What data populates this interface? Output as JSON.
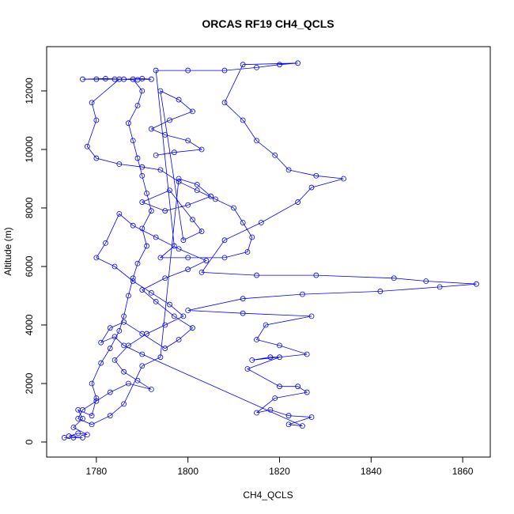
{
  "chart_data": {
    "type": "line",
    "markers": true,
    "title": "ORCAS RF19 CH4_QCLS",
    "x_label": "CH4_QCLS",
    "y_label": "Altitude (m)",
    "color": "#0000ff",
    "xlim": [
      1769.14,
      1866.03
    ],
    "ylim": [
      -514,
      13513
    ],
    "xticks": [
      1780,
      1800,
      1820,
      1840,
      1860
    ],
    "yticks": [
      0,
      2000,
      4000,
      6000,
      8000,
      10000,
      12000
    ],
    "x": [
      1773,
      1775,
      1777,
      1774,
      1776,
      1778,
      1775,
      1777,
      1776,
      1779,
      1780,
      1779,
      1781,
      1783,
      1785,
      1786,
      1787,
      1788,
      1789,
      1791,
      1790,
      1792,
      1791,
      1790,
      1789,
      1788,
      1787,
      1789,
      1790,
      1788,
      1784,
      1780,
      1777,
      1782,
      1786,
      1790,
      1792,
      1789,
      1785,
      1779,
      1780,
      1778,
      1780,
      1785,
      1790,
      1794,
      1798,
      1802,
      1806,
      1810,
      1812,
      1814,
      1813,
      1808,
      1800,
      1794,
      1797,
      1793,
      1800,
      1808,
      1815,
      1820,
      1824,
      1812,
      1808,
      1812,
      1815,
      1819,
      1822,
      1828,
      1834,
      1827,
      1824,
      1816,
      1808,
      1803,
      1815,
      1828,
      1845,
      1852,
      1863,
      1855,
      1842,
      1825,
      1812,
      1800,
      1812,
      1827,
      1817,
      1815,
      1820,
      1826,
      1814,
      1818,
      1820,
      1813,
      1820,
      1824,
      1826,
      1819,
      1815,
      1818,
      1822,
      1827,
      1822,
      1825,
      1790,
      1786,
      1784,
      1781,
      1783,
      1786,
      1790,
      1795,
      1798,
      1801,
      1797,
      1793,
      1790,
      1795,
      1800,
      1804,
      1798,
      1793,
      1788,
      1785,
      1782,
      1780,
      1784,
      1788,
      1792,
      1796,
      1799,
      1795,
      1791,
      1787,
      1784,
      1786,
      1789,
      1792,
      1787,
      1783,
      1780,
      1777,
      1776,
      1779,
      1783,
      1786,
      1790,
      1794,
      1798,
      1802,
      1805,
      1800,
      1795,
      1790,
      1796,
      1801,
      1803,
      1799,
      1794,
      1798,
      1801,
      1796,
      1792,
      1795,
      1800,
      1803,
      1797,
      1793
    ],
    "values": [
      150,
      150,
      150,
      200,
      300,
      250,
      500,
      800,
      1100,
      900,
      1500,
      2000,
      2700,
      3200,
      3800,
      4300,
      5000,
      5600,
      6100,
      6700,
      7300,
      7900,
      8500,
      9100,
      9700,
      10300,
      10900,
      11500,
      12000,
      12400,
      12400,
      12400,
      12400,
      12420,
      12400,
      12420,
      12400,
      12380,
      12400,
      11600,
      11000,
      10100,
      9700,
      9500,
      9400,
      9300,
      8900,
      8600,
      8300,
      8000,
      7500,
      7000,
      6500,
      6300,
      6300,
      6300,
      6700,
      12700,
      12700,
      12700,
      12800,
      12900,
      12950,
      12900,
      11600,
      11000,
      10300,
      9800,
      9300,
      9100,
      9000,
      8700,
      8200,
      7500,
      6900,
      5800,
      5700,
      5700,
      5600,
      5500,
      5400,
      5300,
      5150,
      5050,
      4900,
      4500,
      4400,
      4300,
      4000,
      3500,
      3300,
      3000,
      2800,
      2900,
      2900,
      2500,
      1900,
      1900,
      1700,
      1500,
      1000,
      1100,
      900,
      850,
      600,
      550,
      3000,
      3300,
      3600,
      3400,
      3900,
      4100,
      3700,
      3200,
      3500,
      3900,
      4300,
      4800,
      5200,
      5600,
      5900,
      6200,
      6600,
      7000,
      7400,
      7800,
      6800,
      6300,
      6000,
      5500,
      5100,
      4700,
      4300,
      4000,
      3700,
      3300,
      2800,
      2400,
      2100,
      1800,
      2000,
      1700,
      1400,
      1100,
      800,
      600,
      900,
      1300,
      2600,
      2900,
      9000,
      8800,
      8400,
      8100,
      7900,
      8200,
      8600,
      7600,
      7200,
      6900,
      12000,
      11700,
      11300,
      11000,
      10700,
      10500,
      10300,
      10000,
      9900,
      9800
    ]
  }
}
